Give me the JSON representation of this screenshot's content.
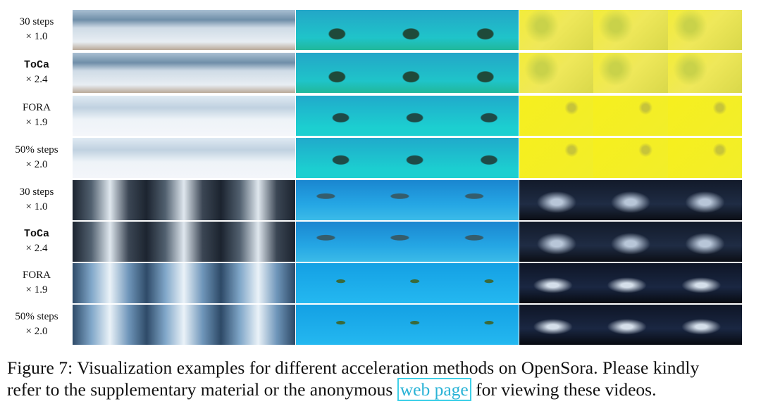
{
  "figure": {
    "rows": [
      {
        "method": "30 steps",
        "speed": "× 1.0"
      },
      {
        "method": "ToCa",
        "speed": "× 2.4"
      },
      {
        "method": "FORA",
        "speed": "× 1.9"
      },
      {
        "method": "50% steps",
        "speed": "× 2.0"
      },
      {
        "method": "30 steps",
        "speed": "× 1.0"
      },
      {
        "method": "ToCa",
        "speed": "× 2.4"
      },
      {
        "method": "FORA",
        "speed": "× 1.9"
      },
      {
        "method": "50% steps",
        "speed": "× 2.0"
      }
    ],
    "caption": {
      "line1": "Figure 7: Visualization examples for different acceleration methods on OpenSora. Please kindly",
      "line2_before": "refer to the supplementary material or the anonymous",
      "link": "web page",
      "line2_after": "for viewing these videos."
    }
  }
}
